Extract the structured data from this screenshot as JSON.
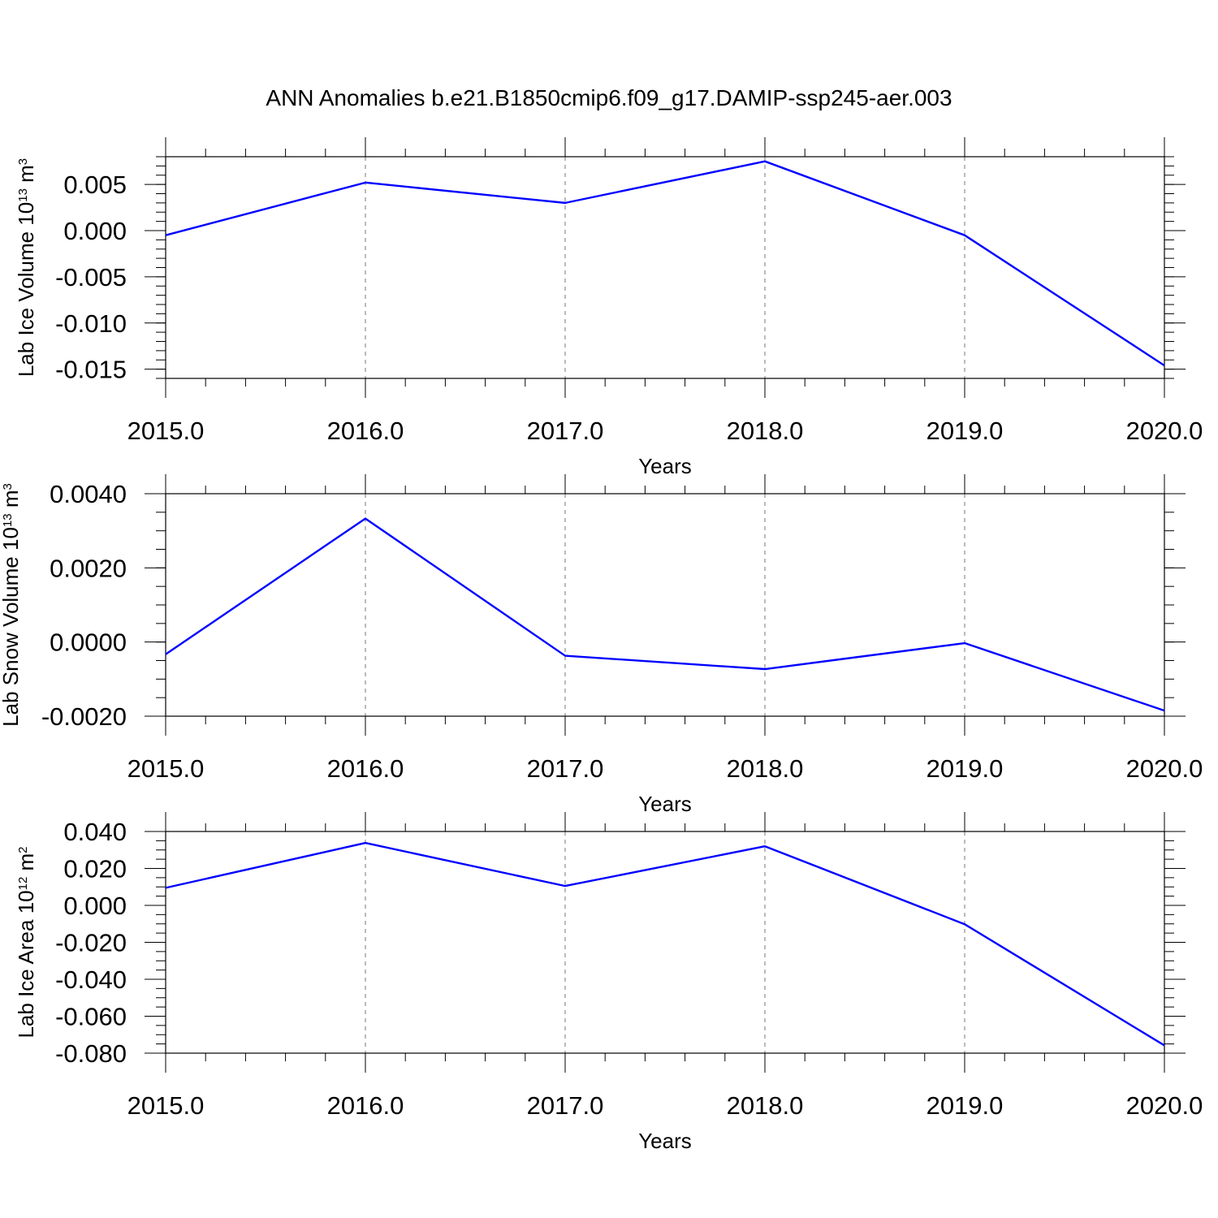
{
  "title": "ANN Anomalies b.e21.B1850cmip6.f09_g17.DAMIP-ssp245-aer.003",
  "colors": {
    "series": "#0000ff",
    "axis": "#000000",
    "grid": "#777777"
  },
  "chart_data": [
    {
      "type": "line",
      "ylabel": {
        "prefix": "Lab Ice Volume 10",
        "exp": "13",
        "unit": " m",
        "unit_exp": "3"
      },
      "xlabel": "Years",
      "xlim": [
        2015,
        2020
      ],
      "ylim": [
        -0.016,
        0.008
      ],
      "x_ticks": [
        "2015.0",
        "2016.0",
        "2017.0",
        "2018.0",
        "2019.0",
        "2020.0"
      ],
      "y_ticks": [
        {
          "value": 0.005,
          "label": "0.005"
        },
        {
          "value": 0.0,
          "label": "0.000"
        },
        {
          "value": -0.005,
          "label": "-0.005"
        },
        {
          "value": -0.01,
          "label": "-0.010"
        },
        {
          "value": -0.015,
          "label": "-0.015"
        }
      ],
      "y_minor_step": 0.001,
      "grid": "vertical dashed at major x ticks",
      "series": [
        {
          "x": [
            2015,
            2016,
            2017,
            2018,
            2019,
            2020
          ],
          "values": [
            -0.0005,
            0.0052,
            0.003,
            0.0075,
            -0.0005,
            -0.0146
          ]
        }
      ]
    },
    {
      "type": "line",
      "ylabel": {
        "prefix": "Lab Snow Volume 10",
        "exp": "13",
        "unit": " m",
        "unit_exp": "3"
      },
      "xlabel": "Years",
      "xlim": [
        2015,
        2020
      ],
      "ylim": [
        -0.002,
        0.004
      ],
      "x_ticks": [
        "2015.0",
        "2016.0",
        "2017.0",
        "2018.0",
        "2019.0",
        "2020.0"
      ],
      "y_ticks": [
        {
          "value": 0.004,
          "label": "0.0040"
        },
        {
          "value": 0.002,
          "label": "0.0020"
        },
        {
          "value": 0.0,
          "label": "0.0000"
        },
        {
          "value": -0.002,
          "label": "-0.0020"
        }
      ],
      "y_minor_step": 0.0005,
      "grid": "vertical dashed at major x ticks",
      "series": [
        {
          "x": [
            2015,
            2016,
            2017,
            2018,
            2019,
            2020
          ],
          "values": [
            -0.00033,
            0.00333,
            -0.00037,
            -0.00073,
            -3e-05,
            -0.00185
          ]
        }
      ]
    },
    {
      "type": "line",
      "ylabel": {
        "prefix": "Lab Ice Area 10",
        "exp": "12",
        "unit": " m",
        "unit_exp": "2"
      },
      "xlabel": "Years",
      "xlim": [
        2015,
        2020
      ],
      "ylim": [
        -0.08,
        0.04
      ],
      "x_ticks": [
        "2015.0",
        "2016.0",
        "2017.0",
        "2018.0",
        "2019.0",
        "2020.0"
      ],
      "y_ticks": [
        {
          "value": 0.04,
          "label": "0.040"
        },
        {
          "value": 0.02,
          "label": "0.020"
        },
        {
          "value": 0.0,
          "label": "0.000"
        },
        {
          "value": -0.02,
          "label": "-0.020"
        },
        {
          "value": -0.04,
          "label": "-0.040"
        },
        {
          "value": -0.06,
          "label": "-0.060"
        },
        {
          "value": -0.08,
          "label": "-0.080"
        }
      ],
      "y_minor_step": 0.005,
      "grid": "vertical dashed at major x ticks",
      "series": [
        {
          "x": [
            2015,
            2016,
            2017,
            2018,
            2019,
            2020
          ],
          "values": [
            0.0095,
            0.0338,
            0.0105,
            0.032,
            -0.0102,
            -0.0758
          ]
        }
      ]
    }
  ]
}
